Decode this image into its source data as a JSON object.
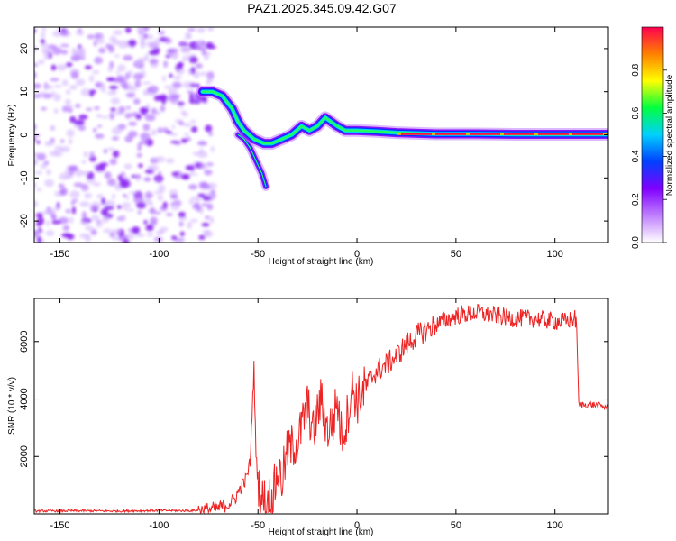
{
  "chart_data": [
    {
      "type": "heatmap",
      "title": "PAZ1.2025.345.09.42.G07",
      "xlabel": "Height of straight line (km)",
      "ylabel": "Frequency (Hz)",
      "xlim": [
        -163,
        127
      ],
      "ylim": [
        -25,
        25
      ],
      "xticks": [
        -150,
        -100,
        -50,
        0,
        50,
        100
      ],
      "yticks": [
        -20,
        -10,
        0,
        10,
        20
      ],
      "noise_region": [
        -163,
        -78
      ],
      "noise_density": 0.6,
      "ridge": {
        "x": [
          -78,
          -73,
          -68,
          -63,
          -60,
          -57,
          -52,
          -47,
          -43,
          -38,
          -33,
          -28,
          -24,
          -20,
          -16,
          -13,
          -10,
          -6,
          0,
          10,
          20,
          40,
          60,
          80,
          100,
          127
        ],
        "y": [
          10,
          10,
          9,
          6,
          3,
          1,
          -1,
          -2,
          -2,
          -1,
          0,
          2,
          1,
          2,
          4,
          3,
          2,
          1,
          1,
          0.8,
          0.5,
          0.2,
          0.2,
          0.1,
          0.1,
          0.1
        ]
      },
      "branch": {
        "x": [
          -60,
          -57,
          -54,
          -51,
          -48,
          -46
        ],
        "y": [
          0,
          -1,
          -3,
          -6,
          -9,
          -12
        ]
      },
      "colorbar": {
        "label": "Normalized spectral amplitude",
        "range": [
          0.0,
          1.0
        ],
        "ticks": [
          0.0,
          0.2,
          0.4,
          0.6,
          0.8
        ],
        "tick_labels": [
          "0.0",
          "0.2",
          "0.4",
          "0.6",
          "0.8"
        ],
        "colormap": [
          "#ffffff",
          "#c080ff",
          "#8000ff",
          "#0040ff",
          "#00d0ff",
          "#00ff40",
          "#ffff00",
          "#ff8000",
          "#ff0050"
        ]
      }
    },
    {
      "type": "line",
      "xlabel": "Height of straight line (km)",
      "ylabel": "SNR (10 * v/v)",
      "xlim": [
        -163,
        127
      ],
      "ylim": [
        0,
        7500
      ],
      "xticks": [
        -150,
        -100,
        -50,
        0,
        50,
        100
      ],
      "yticks": [
        2000,
        4000,
        6000
      ],
      "color": "#ee2222",
      "series": [
        {
          "name": "SNR",
          "x": [
            -163,
            -140,
            -120,
            -100,
            -85,
            -75,
            -70,
            -65,
            -62,
            -58,
            -56,
            -54,
            -53,
            -52,
            -51,
            -50,
            -49,
            -48,
            -47,
            -45,
            -43,
            -40,
            -38,
            -35,
            -32,
            -30,
            -28,
            -25,
            -22,
            -20,
            -18,
            -15,
            -12,
            -10,
            -8,
            -6,
            -4,
            -2,
            0,
            5,
            10,
            15,
            20,
            25,
            30,
            40,
            50,
            60,
            70,
            80,
            90,
            100,
            105,
            110,
            111,
            112,
            120,
            127
          ],
          "y": [
            100,
            110,
            100,
            120,
            110,
            150,
            200,
            350,
            500,
            1000,
            1200,
            1800,
            3500,
            5100,
            2000,
            1200,
            800,
            500,
            450,
            600,
            400,
            1500,
            1200,
            2200,
            2400,
            2500,
            3000,
            3800,
            2800,
            3500,
            4000,
            2900,
            3200,
            4000,
            2800,
            3000,
            3800,
            4400,
            3900,
            4500,
            5000,
            5200,
            5500,
            5900,
            6200,
            6600,
            6900,
            7000,
            6900,
            6800,
            6800,
            6700,
            6700,
            6800,
            6500,
            3800,
            3800,
            3700
          ]
        }
      ]
    }
  ]
}
